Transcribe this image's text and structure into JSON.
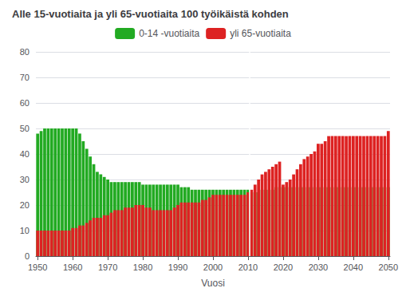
{
  "chart_data": {
    "type": "bar",
    "stacked": true,
    "title": "Alle 15-vuotiaita ja yli 65-vuotiaita 100 työikäistä kohden",
    "x_label": "Vuosi",
    "x": [
      1950,
      1951,
      1952,
      1953,
      1954,
      1955,
      1956,
      1957,
      1958,
      1959,
      1960,
      1961,
      1962,
      1963,
      1964,
      1965,
      1966,
      1967,
      1968,
      1969,
      1970,
      1971,
      1972,
      1973,
      1974,
      1975,
      1976,
      1977,
      1978,
      1979,
      1980,
      1981,
      1982,
      1983,
      1984,
      1985,
      1986,
      1987,
      1988,
      1989,
      1990,
      1991,
      1992,
      1993,
      1994,
      1995,
      1996,
      1997,
      1998,
      1999,
      2000,
      2001,
      2002,
      2003,
      2004,
      2005,
      2006,
      2007,
      2008,
      2009,
      2010,
      2011,
      2012,
      2013,
      2014,
      2015,
      2016,
      2017,
      2018,
      2019,
      2020,
      2021,
      2022,
      2023,
      2024,
      2025,
      2026,
      2027,
      2028,
      2029,
      2030,
      2031,
      2032,
      2033,
      2034,
      2035,
      2036,
      2037,
      2038,
      2039,
      2040,
      2041,
      2042,
      2043,
      2044,
      2045,
      2046,
      2047,
      2048,
      2049,
      2050
    ],
    "series": [
      {
        "name": "0-14 -vuotiaita",
        "color": "#22aa22",
        "values": [
          48,
          49,
          50,
          50,
          50,
          50,
          50,
          50,
          50,
          50,
          50,
          50,
          48,
          45,
          42,
          39,
          36,
          33,
          32,
          31,
          30,
          29,
          29,
          29,
          29,
          29,
          29,
          29,
          29,
          29,
          28,
          28,
          28,
          28,
          28,
          28,
          28,
          28,
          28,
          28,
          28,
          27,
          27,
          27,
          26,
          26,
          26,
          26,
          26,
          26,
          26,
          26,
          26,
          26,
          26,
          26,
          26,
          26,
          26,
          26,
          26,
          25,
          25,
          25,
          26,
          26,
          26,
          26,
          27,
          27,
          27,
          27,
          27,
          27,
          27,
          27,
          27,
          27,
          27,
          27,
          27,
          27,
          27,
          27,
          27,
          27,
          27,
          27,
          27,
          27,
          27,
          27,
          27,
          27,
          27,
          27,
          27,
          27,
          27,
          27,
          27
        ]
      },
      {
        "name": "yli 65-vuotiaita",
        "color": "#dd2222",
        "values": [
          10,
          10,
          10,
          10,
          10,
          10,
          10,
          10,
          10,
          10,
          11,
          11,
          12,
          12,
          13,
          14,
          15,
          15,
          15,
          16,
          16,
          17,
          18,
          18,
          18,
          19,
          19,
          19,
          20,
          20,
          20,
          19,
          19,
          18,
          18,
          18,
          18,
          18,
          18,
          19,
          20,
          21,
          21,
          21,
          21,
          21,
          21,
          22,
          22,
          23,
          24,
          24,
          24,
          24,
          24,
          24,
          24,
          24,
          24,
          24,
          25,
          26,
          28,
          30,
          32,
          33,
          34,
          35,
          36,
          37,
          28,
          29,
          30,
          32,
          34,
          36,
          38,
          39,
          40,
          41,
          44,
          44,
          45,
          47,
          47,
          47,
          47,
          47,
          47,
          47,
          47,
          47,
          47,
          47,
          47,
          47,
          47,
          47,
          47,
          47,
          49
        ]
      }
    ],
    "separator": 2010.5,
    "xlim": [
      1949.5,
      2050.5
    ],
    "xticks": [
      1950,
      1960,
      1970,
      1980,
      1990,
      2000,
      2010,
      2020,
      2030,
      2040,
      2050
    ],
    "ylim": [
      0,
      80
    ],
    "yticks": [
      0,
      10,
      20,
      30,
      40,
      50,
      60,
      70,
      80
    ],
    "grid": true,
    "legend": "top"
  }
}
